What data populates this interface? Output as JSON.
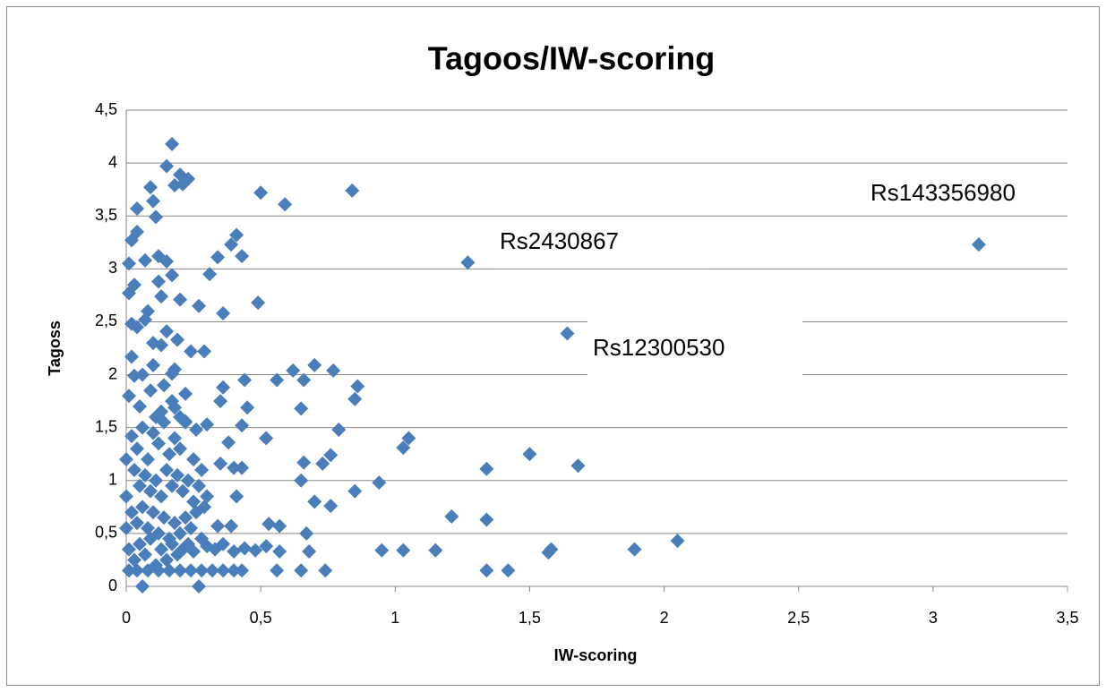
{
  "chart_data": {
    "type": "scatter",
    "title": "Tagoos/IW-scoring",
    "x_label": "IW-scoring",
    "y_label": "Tagoss",
    "color": "#4a7ebb",
    "grid": true,
    "xlim": [
      0,
      3.5
    ],
    "ylim": [
      0,
      4.5
    ],
    "xticks": [
      0,
      {
        "value": 0.5,
        "label": "0,5"
      },
      1,
      {
        "value": 1.5,
        "label": "1,5"
      },
      2,
      {
        "value": 2.5,
        "label": "2,5"
      },
      3,
      {
        "value": 3.5,
        "label": "3,5"
      }
    ],
    "yticks": [
      0,
      {
        "value": 0.5,
        "label": "0,5"
      },
      1,
      {
        "value": 1.5,
        "label": "1,5"
      },
      2,
      {
        "value": 2.5,
        "label": "2,5"
      },
      3,
      {
        "value": 3.5,
        "label": "3,5"
      },
      4,
      {
        "value": 4.5,
        "label": "4,5"
      }
    ],
    "annotations": [
      "Rs143356980",
      "Rs2430867",
      "Rs12300530"
    ],
    "x": [
      3.17,
      1.27,
      1.64,
      0.84,
      0.5,
      0.59,
      2.05,
      1.89,
      1.58,
      1.57,
      1.5,
      1.68,
      1.34,
      1.34,
      1.34,
      1.42,
      1.15,
      1.03,
      0.95,
      0.94,
      1.21,
      1.05,
      1.03,
      0.85,
      0.86,
      0.85,
      0.79,
      0.77,
      0.7,
      0.62,
      0.66,
      0.56,
      0.65,
      0.76,
      0.73,
      0.66,
      0.65,
      0.7,
      0.76,
      0.67,
      0.68,
      0.65,
      0.74,
      0.56,
      0.52,
      0.49,
      0.43,
      0.41,
      0.39,
      0.34,
      0.31,
      0.36,
      0.27,
      0.29,
      0.24,
      0.44,
      0.45,
      0.36,
      0.35,
      0.43,
      0.38,
      0.3,
      0.43,
      0.4,
      0.35,
      0.41,
      0.34,
      0.39,
      0.52,
      0.53,
      0.57,
      0.57,
      0.43,
      0.27,
      0.06,
      0.17,
      0.15,
      0.2,
      0.23,
      0.18,
      0.21,
      0.09,
      0.1,
      0.04,
      0.11,
      0.02,
      0.04,
      0.01,
      0.07,
      0.15,
      0.12,
      0.17,
      0.12,
      0.01,
      0.2,
      0.13,
      0.02,
      0.07,
      0.15,
      0.19,
      0.13,
      0.02,
      0.03,
      0.17,
      0.1,
      0.22,
      0.18,
      0.22,
      0.26,
      0.02,
      0.04,
      0.06,
      0.08,
      0.1,
      0.12,
      0.14,
      0.16,
      0.18,
      0.2,
      0.03,
      0.05,
      0.07,
      0.09,
      0.11,
      0.13,
      0.15,
      0.17,
      0.19,
      0.21,
      0.23,
      0.25,
      0.27,
      0.29,
      0.02,
      0.04,
      0.06,
      0.08,
      0.1,
      0.12,
      0.14,
      0.16,
      0.18,
      0.2,
      0.22,
      0.24,
      0.26,
      0.28,
      0.01,
      0.03,
      0.05,
      0.07,
      0.09,
      0.11,
      0.13,
      0.15,
      0.17,
      0.19,
      0.21,
      0.23,
      0.25,
      0.3,
      0.33,
      0.36,
      0.4,
      0.44,
      0.48,
      0.01,
      0.04,
      0.08,
      0.12,
      0.16,
      0.2,
      0.24,
      0.28,
      0.32,
      0.36,
      0.4,
      0,
      0,
      0,
      0.01,
      0.05,
      0.09,
      0.13,
      0.17,
      0.2,
      0.06,
      0.1,
      0.04,
      0.08,
      0.03,
      0.25,
      0.22,
      0.28,
      0.3,
      0.14,
      0.18,
      0.11
    ],
    "values": [
      3.23,
      3.06,
      2.39,
      3.74,
      3.72,
      3.61,
      0.43,
      0.35,
      0.35,
      0.32,
      1.25,
      1.14,
      1.11,
      0.63,
      0.15,
      0.15,
      0.34,
      0.34,
      0.34,
      0.98,
      0.66,
      1.4,
      1.31,
      0.9,
      1.89,
      1.77,
      1.48,
      2.04,
      2.09,
      2.04,
      1.95,
      1.95,
      1.68,
      1.24,
      1.16,
      1.17,
      1,
      0.8,
      0.76,
      0.5,
      0.33,
      0.15,
      0.15,
      0.15,
      1.4,
      2.68,
      3.12,
      3.32,
      3.23,
      3.11,
      2.95,
      2.58,
      2.65,
      2.22,
      2.22,
      1.95,
      1.69,
      1.88,
      1.75,
      1.52,
      1.36,
      1.53,
      1.12,
      1.12,
      1.16,
      0.85,
      0.57,
      0.57,
      0.38,
      0.59,
      0.57,
      0.33,
      0.15,
      0,
      0,
      4.18,
      3.97,
      3.89,
      3.85,
      3.79,
      3.8,
      3.77,
      3.64,
      3.57,
      3.49,
      3.27,
      3.35,
      3.05,
      3.08,
      3.07,
      3.12,
      2.94,
      2.88,
      2.77,
      2.71,
      2.74,
      2.48,
      2.52,
      2.41,
      2.33,
      2.28,
      2.17,
      1.99,
      2.01,
      2.09,
      1.82,
      1.69,
      1.56,
      1.48,
      1.42,
      1.3,
      1.5,
      1.2,
      1.45,
      1.35,
      1.55,
      1.25,
      1.4,
      1.3,
      1.1,
      0.95,
      1.05,
      0.9,
      1,
      0.85,
      1.1,
      0.95,
      1.05,
      0.9,
      1,
      0.8,
      0.95,
      0.75,
      0.7,
      0.6,
      0.75,
      0.55,
      0.7,
      0.5,
      0.65,
      0.45,
      0.6,
      0.5,
      0.65,
      0.55,
      0.7,
      0.45,
      0.35,
      0.25,
      0.4,
      0.3,
      0.45,
      0.2,
      0.35,
      0.25,
      0.4,
      0.3,
      0.35,
      0.4,
      0.33,
      0.38,
      0.35,
      0.4,
      0.33,
      0.36,
      0.34,
      0.15,
      0.15,
      0.15,
      0.15,
      0.15,
      0.15,
      0.15,
      0.15,
      0.15,
      0.15,
      0.15,
      0.55,
      0.85,
      1.2,
      1.8,
      1.7,
      1.85,
      1.65,
      1.75,
      1.6,
      2,
      2.3,
      2.45,
      2.6,
      2.85,
      1.2,
      1.55,
      1.1,
      0.85,
      1.9,
      2.05,
      1.6
    ]
  }
}
